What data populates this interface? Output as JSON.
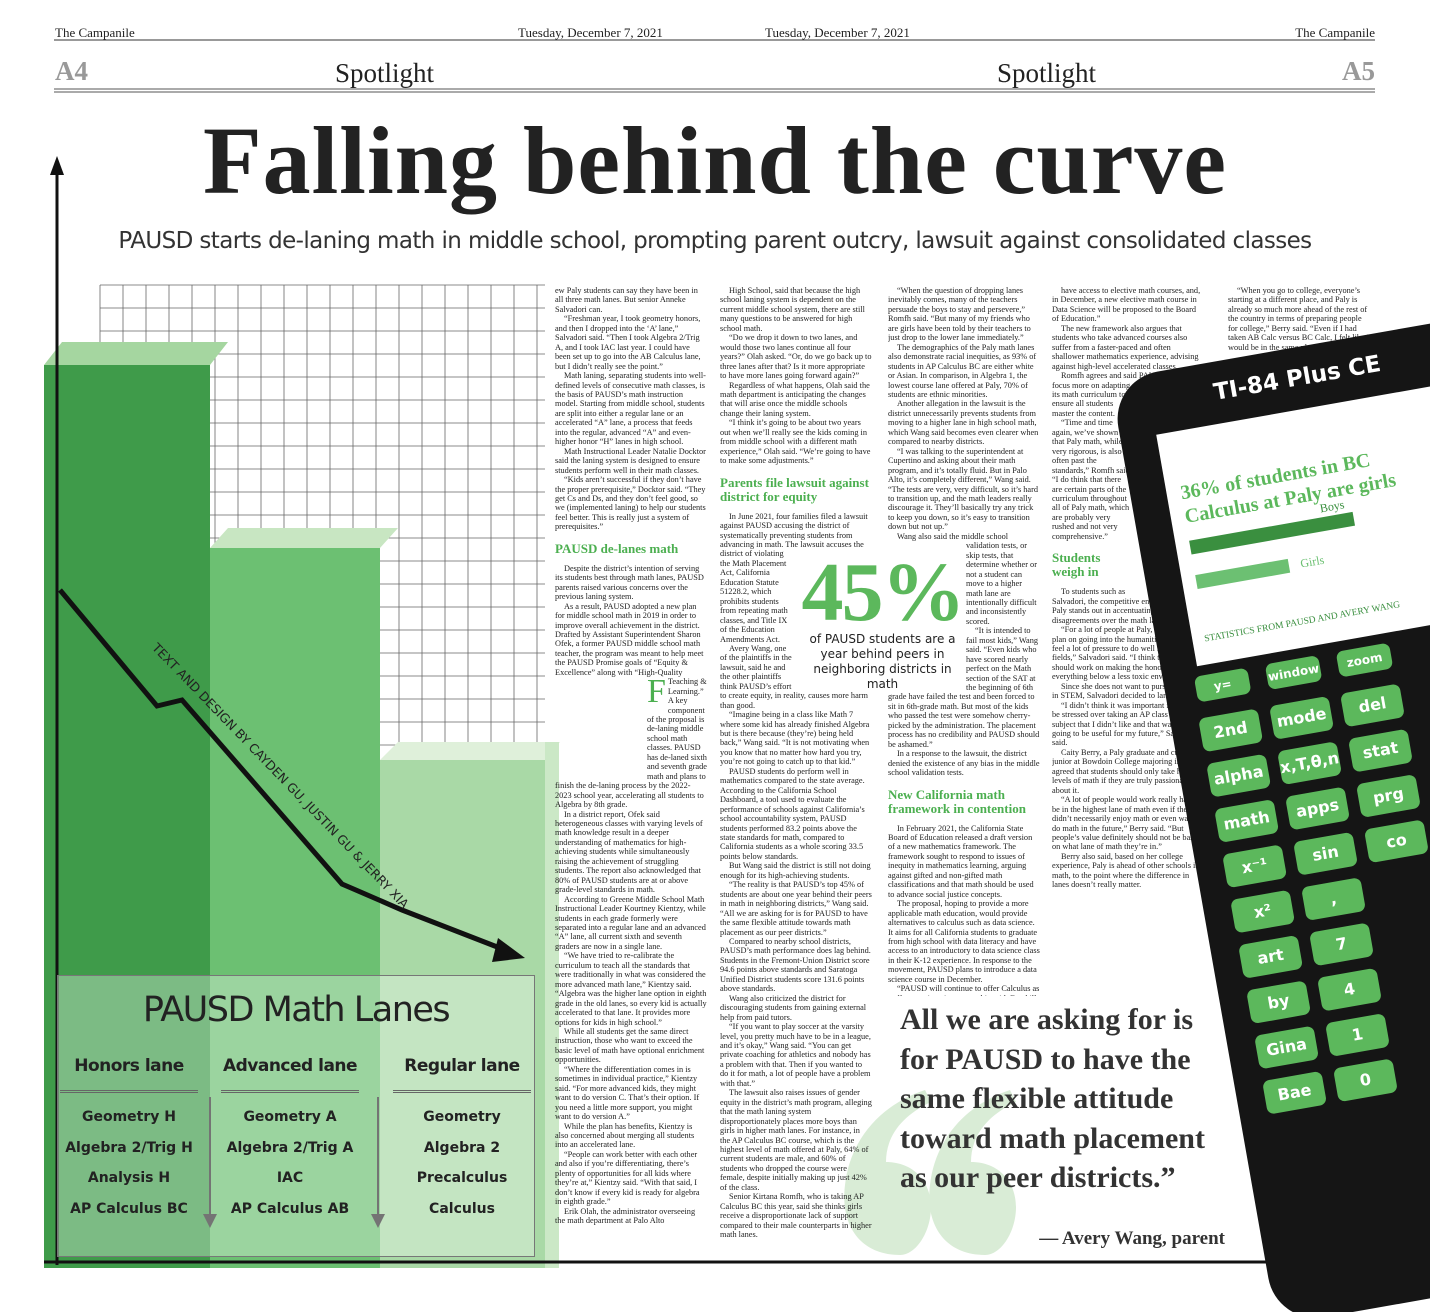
{
  "header": {
    "left_paper": "The Campanile",
    "left_date": "Tuesday, December 7, 2021",
    "right_date": "Tuesday, December 7, 2021",
    "right_paper": "The Campanile",
    "left_page": "A4",
    "left_section": "Spotlight",
    "right_section": "Spotlight",
    "right_page": "A5"
  },
  "title": "Falling behind the curve",
  "subtitle": "PAUSD starts de-laning math in middle school, prompting parent outcry, lawsuit against consolidated classes",
  "byline": "TEXT AND DESIGN BY CAYDEN GU, JUSTIN GU & JERRY XIA",
  "lanes_box": {
    "title": "PAUSD Math Lanes",
    "lanes": [
      {
        "name": "Honors lane",
        "courses": [
          "Geometry H",
          "Algebra 2/Trig H",
          "Analysis H",
          "AP Calculus BC"
        ]
      },
      {
        "name": "Advanced lane",
        "courses": [
          "Geometry A",
          "Algebra 2/Trig A",
          "IAC",
          "AP Calculus AB"
        ]
      },
      {
        "name": "Regular lane",
        "courses": [
          "Geometry",
          "Algebra 2",
          "Precalculus",
          "Calculus"
        ]
      }
    ]
  },
  "stat": {
    "figure": "45%",
    "caption": "of PAUSD students are a year behind peers in neighboring districts in math"
  },
  "quote": {
    "text": "All we are asking for is for PAUSD to have the same flexible attitude toward math placement as our peer districts.”",
    "attribution": "— Avery Wang, parent"
  },
  "calculator": {
    "brand": "TI-84 Plus CE",
    "screen": {
      "headline": "36% of students in BC Calculus at Paly are girls",
      "bars": [
        {
          "name": "Boys",
          "value": 64
        },
        {
          "name": "Girls",
          "value": 36
        }
      ],
      "source": "STATISTICS FROM PAUSD AND AVERY WANG"
    },
    "key_rows": [
      [
        "y=",
        "window",
        "zoom"
      ],
      [
        "2nd",
        "mode",
        "del"
      ],
      [
        "alpha",
        "x,T,θ,n",
        "stat"
      ],
      [
        "math",
        "apps",
        "prg"
      ],
      [
        "x⁻¹",
        "sin",
        "co"
      ],
      [
        "x²",
        ","
      ],
      [
        "art",
        "7"
      ],
      [
        "by",
        "4"
      ],
      [
        "Gina",
        "1"
      ],
      [
        "Bae",
        "0"
      ]
    ]
  },
  "article": {
    "columns": [
      [
        "Few Paly students can say they have been in all three math lanes. But senior Anneke Salvadori can.",
        "“Freshman year, I took geometry honors, and then I dropped into the ‘A’ lane,” Salvadori said. “Then I took Algebra 2/Trig A, and I took IAC last year. I could have been set up to go into the AB Calculus lane, but I didn’t really see the point.”",
        "Math laning, separating students into well-defined levels of consecutive math classes, is the basis of PAUSD’s math instruction model. Starting from middle school, students are split into either a regular lane or an accelerated “A” lane, a process that feeds into the regular, advanced “A” and even-higher honor “H” lanes in high school.",
        "Math Instructional Leader Natalie Docktor said the laning system is designed to ensure students perform well in their math classes.",
        "“Kids aren’t successful if they don’t have the proper prerequisite,” Docktor said. “They get Cs and Ds, and they don’t feel good, so we (implemented laning) to help our students feel better. This is really just a system of prerequisites.”",
        {
          "heading": "PAUSD de-lanes math"
        },
        "Despite the district’s intention of serving its students best through math lanes, PAUSD parents raised various concerns over the previous laning system.",
        "As a result, PAUSD adopted a new plan for middle school math in 2019 in order to improve overall achievement in the district. Drafted by Assistant Superintendent Sharon Ofek, a former PAUSD middle school math teacher, the program was meant to help meet the PAUSD Promise goals of “Equity & Excellence” along with “High-Quality Teaching & Learning.” A key component of the proposal is de-laning middle school math classes. PAUSD has de-laned sixth and seventh grade math and plans to finish the de-laning process by the 2022-2023 school year, accelerating all students to Algebra by 8th grade.",
        "In a district report, Ofek said heterogeneous classes with varying levels of math knowledge result in a deeper understanding of mathematics for high-achieving students while simultaneously raising the achievement of struggling students. The report also acknowledged that 80% of PAUSD students are at or above grade-level standards in math.",
        "According to Greene Middle School Math Instructional Leader Kourtney Kientzy, while students in each grade formerly were separated into a regular lane and an advanced “A” lane, all current sixth and seventh graders are now in a single lane.",
        "“We have tried to re-calibrate the curriculum to teach all the standards that were traditionally in what was considered the more advanced math lane,” Kientzy said. “Algebra was the higher lane option in eighth grade in the old lanes, so every kid is actually accelerated to that lane. It provides more options for kids in high school.”",
        "While all students get the same direct instruction, those who want to exceed the basic level of math have optional enrichment opportunities.",
        "“Where the differentiation comes in is sometimes in individual practice,” Kientzy said. “For more advanced kids, they might want to do version C. That’s their option. If you need a little more support, you might want to do version A.”",
        "While the plan has benefits, Kientzy is also concerned about merging all students into an accelerated lane.",
        "“People can work better with each other and also if you’re differentiating, there’s plenty of opportunities for all kids where they’re at,” Kientzy said. “With that said, I don’t know if every kid is ready for algebra in eighth grade.”",
        "Erik Olah, the administrator overseeing the math department at Palo Alto"
      ],
      [
        "High School, said that because the high school laning system is dependent on the current middle school system, there are still many questions to be answered for high school math.",
        "“Do we drop it down to two lanes, and would those two lanes continue all four years?” Olah asked. “Or, do we go back up to three lanes after that? Is it more appropriate to have more lanes going forward again?”",
        "Regardless of what happens, Olah said the math department is anticipating the changes that will arise once the middle schools change their laning system.",
        "“I think it’s going to be about two years out when we’ll really see the kids coming in from middle school with a different math experience,” Olah said. “We’re going to have to make some adjustments.”",
        {
          "heading": "Parents file lawsuit against district for equity"
        },
        "In June 2021, four families filed a lawsuit against PAUSD accusing the district of systematically preventing students from advancing in math. The lawsuit accuses the district of violating the Math Placement Act, California Education Statute 51228.2, which prohibits students from repeating math classes, and Title IX of the Education Amendments Act.",
        "Avery Wang, one of the plaintiffs in the lawsuit, said he and the other plaintiffs think PAUSD’s effort to create equity, in reality, causes more harm than good.",
        "“Imagine being in a class like Math 7 where some kid has already finished Algebra but is there because (they’re) being held back,” Wang said. “It is not motivating when you know that no matter how hard you try, you’re not going to catch up to that kid.”",
        "PAUSD students do perform well in mathematics compared to the state average. According to the California School Dashboard, a tool used to evaluate the performance of schools against California’s school accountability system, PAUSD students performed 83.2 points above the state standards for math, compared to California students as a whole scoring 33.5 points below standards.",
        "But Wang said the district is still not doing enough for its high-achieving students.",
        "“The reality is that PAUSD’s top 45% of students are about one year behind their peers in math in neighboring districts,” Wang said. “All we are asking for is for PAUSD to have the same flexible attitude towards math placement as our peer districts.”",
        "Compared to nearby school districts, PAUSD’s math performance does lag behind. Students in the Fremont-Union District score 94.6 points above standards and Saratoga Unified District students score 131.6 points above standards.",
        "Wang also criticized the district for discouraging students from gaining external help from paid tutors.",
        "“If you want to play soccer at the varsity level, you pretty much have to be in a league, and it’s okay,” Wang said. “You can get private coaching for athletics and nobody has a problem with that. Then if you wanted to do it for math, a lot of people have a problem with that.”",
        "The lawsuit also raises issues of gender equity in the district’s math program, alleging that the math laning system disproportionately places more boys than girls in higher math lanes. For instance, in the AP Calculus BC course, which is the highest level of math offered at Paly, 64% of current students are male, and 60% of students who dropped the course were female, despite initially making up just 42% of the class.",
        "Senior Kirtana Romfh, who is taking AP Calculus BC this year, said she thinks girls receive a disproportionate lack of support compared to their male counterparts in higher math lanes."
      ],
      [
        "“When the question of dropping lanes inevitably comes, many of the teachers persuade the boys to stay and persevere,” Romfh said. “But many of my friends who are girls have been told by their teachers to just drop to the lower lane immediately.”",
        "The demographics of the Paly math lanes also demonstrate racial inequities, as 93% of students in AP Calculus BC are either white or Asian. In comparison, in Algebra 1, the lowest course lane offered at Paly, 70% of students are ethnic minorities.",
        "Another allegation in the lawsuit is the district unnecessarily prevents students from moving to a higher lane in high school math, which Wang said becomes even clearer when compared to nearby districts.",
        "“I was talking to the superintendent at Cupertino and asking about their math program, and it’s totally fluid. But in Palo Alto, it’s completely different,” Wang said. “The tests are very, very difficult, so it’s hard to transition up, and the math leaders really discourage it. They’ll basically try any trick to keep you down, so it’s easy to transition down but not up.”",
        "Wang also said the middle school validation tests, or skip tests, that determine whether or not a student can move to a higher math lane are intentionally difficult and inconsistently scored.",
        "“It is intended to fail most kids,” Wang said. “Even kids who have scored nearly perfect on the Math section of the SAT at the beginning of 6th grade have failed the test and been forced to sit in 6th-grade math. But most of the kids who passed the test were somehow cherry-picked by the administration. The placement process has no credibility and PAUSD should be ashamed.”",
        "In a response to the lawsuit, the district denied the existence of any bias in the middle school validation tests.",
        {
          "heading": "New California math framework in contention"
        },
        "In February 2021, the California State Board of Education released a draft version of a new mathematics framework. The framework sought to respond to issues of inequity in mathematics learning, arguing against gifted and non-gifted math classifications and that math should be used to advance social justice concepts.",
        "The proposal, hoping to provide a more applicable math education, would provide alternatives to calculus such as data science. It aims for all California students to graduate from high school with data literacy and have access to an introductory to data science class in their K-12 experience. In response to the movement, PAUSD plans to introduce a data science course in December.",
        "“PAUSD will continue to offer Calculus as well as continue its partnership with Foothill Community College for courses beyond BC Calculus,” Ofek said. “Students currently"
      ],
      [
        "have access to elective math courses, and, in December, a new elective math course in Data Science will be proposed to the Board of Education.”",
        "The new framework also argues that students who take advanced courses also suffer from a faster-paced and often shallower mathematics experience, advising against high-level accelerated classes.",
        "Romfh agrees and said PAUSD should focus more on adapting its math curriculum to ensure all students master the content.",
        "“Time and time again, we’ve shown that Paly math, while very rigorous, is also often past the standards,” Romfh said. “I do think that there are certain parts of the curriculum throughout all of Paly math, which are probably very rushed and not very comprehensive.”",
        {
          "heading": "Students weigh in"
        },
        "To students such as Salvadori, the competitive environment of Paly stands out in accentuating the disagreements over the math lanes.",
        "“For a lot of people at Paly, even if you plan on going into the humanities, you still feel a lot of pressure to do well in the STEM fields,” Salvadori said. “I think the school should work on making the honors lanes and everything below a less toxic environment.”",
        "Since she does not want to pursue a career in STEM, Salvadori decided to lane down.",
        "“I didn’t think it was important for me to be stressed over taking an AP class in a subject that I didn’t like and that was not going to be useful for my future,” Salvadori said.",
        "Caity Berry, a Paly graduate and current junior at Bowdoin College majoring in math, agreed that students should only take higher levels of math if they are truly passionate about it.",
        "“A lot of people would work really hard to be in the highest lane of math even if they didn’t necessarily enjoy math or even want to do math in the future,” Berry said. “But people’s value definitely should not be based on what lane of math they’re in.”",
        "Berry also said, based on her college experience, Paly is ahead of other schools in math, to the point where the difference in lanes doesn’t really matter."
      ],
      [
        "“When you go to college, everyone’s starting at a different place, and Paly is already so much more ahead of the rest of the country in terms of preparing people for college,” Berry said. “Even if I had taken AB Calc versus BC Calc, I felt like I would be in the same place as I am now.”"
      ]
    ]
  }
}
